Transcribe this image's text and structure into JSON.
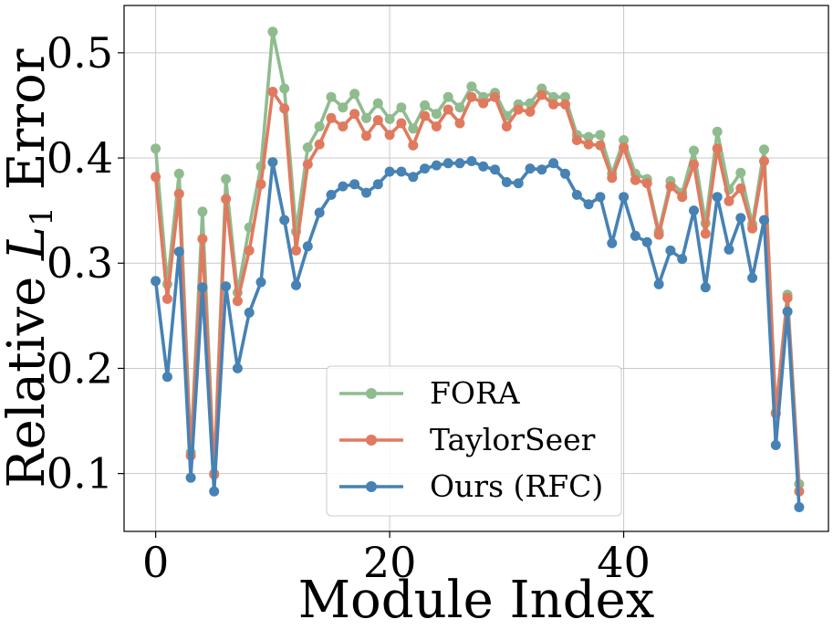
{
  "chart_data": {
    "type": "line",
    "xlabel": "Module Index",
    "ylabel": "Relative L1 Error",
    "ylabel_parts": {
      "prefix": "Relative ",
      "var": "L",
      "sub": "1",
      "suffix": " Error"
    },
    "xlim": [
      -2.7,
      57.5
    ],
    "ylim": [
      0.045,
      0.545
    ],
    "xticks": [
      0,
      20,
      40
    ],
    "xtick_labels": [
      "0",
      "20",
      "40"
    ],
    "yticks": [
      0.1,
      0.2,
      0.3,
      0.4,
      0.5
    ],
    "ytick_labels": [
      "0.1",
      "0.2",
      "0.3",
      "0.4",
      "0.5"
    ],
    "grid": true,
    "legend_position": "bottom-center",
    "x": [
      0,
      1,
      2,
      3,
      4,
      5,
      6,
      7,
      8,
      9,
      10,
      11,
      12,
      13,
      14,
      15,
      16,
      17,
      18,
      19,
      20,
      21,
      22,
      23,
      24,
      25,
      26,
      27,
      28,
      29,
      30,
      31,
      32,
      33,
      34,
      35,
      36,
      37,
      38,
      39,
      40,
      41,
      42,
      43,
      44,
      45,
      46,
      47,
      48,
      49,
      50,
      51,
      52,
      53,
      54,
      55
    ],
    "series": [
      {
        "name": "FORA",
        "color": "#8fbc8f",
        "values": [
          0.409,
          0.28,
          0.385,
          0.12,
          0.349,
          0.1,
          0.38,
          0.272,
          0.334,
          0.392,
          0.52,
          0.466,
          0.33,
          0.41,
          0.43,
          0.458,
          0.448,
          0.461,
          0.438,
          0.452,
          0.437,
          0.448,
          0.428,
          0.45,
          0.442,
          0.458,
          0.448,
          0.468,
          0.458,
          0.462,
          0.44,
          0.451,
          0.452,
          0.466,
          0.458,
          0.458,
          0.422,
          0.42,
          0.422,
          0.385,
          0.417,
          0.385,
          0.38,
          0.33,
          0.378,
          0.367,
          0.407,
          0.338,
          0.425,
          0.37,
          0.386,
          0.337,
          0.408,
          0.158,
          0.27,
          0.09
        ]
      },
      {
        "name": "TaylorSeer",
        "color": "#e07a5f",
        "values": [
          0.382,
          0.266,
          0.366,
          0.117,
          0.323,
          0.099,
          0.361,
          0.264,
          0.312,
          0.375,
          0.463,
          0.447,
          0.312,
          0.394,
          0.413,
          0.438,
          0.43,
          0.442,
          0.421,
          0.436,
          0.422,
          0.433,
          0.412,
          0.44,
          0.43,
          0.446,
          0.433,
          0.458,
          0.452,
          0.458,
          0.43,
          0.446,
          0.444,
          0.46,
          0.451,
          0.451,
          0.417,
          0.413,
          0.412,
          0.381,
          0.41,
          0.379,
          0.376,
          0.327,
          0.373,
          0.363,
          0.394,
          0.328,
          0.409,
          0.359,
          0.371,
          0.333,
          0.397,
          0.157,
          0.267,
          0.083
        ]
      },
      {
        "name": "Ours (RFC)",
        "color": "#4682b4",
        "values": [
          0.283,
          0.192,
          0.311,
          0.096,
          0.277,
          0.083,
          0.278,
          0.2,
          0.253,
          0.282,
          0.396,
          0.341,
          0.279,
          0.316,
          0.348,
          0.365,
          0.373,
          0.375,
          0.367,
          0.375,
          0.387,
          0.387,
          0.382,
          0.39,
          0.393,
          0.395,
          0.395,
          0.397,
          0.392,
          0.389,
          0.377,
          0.376,
          0.39,
          0.389,
          0.395,
          0.385,
          0.365,
          0.356,
          0.363,
          0.319,
          0.363,
          0.326,
          0.32,
          0.28,
          0.312,
          0.304,
          0.35,
          0.277,
          0.363,
          0.313,
          0.343,
          0.286,
          0.341,
          0.127,
          0.254,
          0.068
        ]
      }
    ]
  }
}
